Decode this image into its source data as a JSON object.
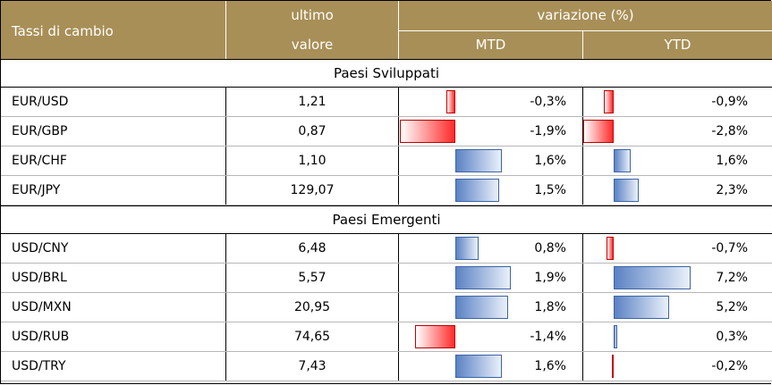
{
  "header": {
    "col1": "Tassi di cambio",
    "col2_line1": "ultimo",
    "col2_line2": "valore",
    "group": "variazione (%)",
    "mtd": "MTD",
    "ytd": "YTD"
  },
  "colors": {
    "header_bg": "#a88f57",
    "positive_bar": "#5b82c4",
    "negative_bar": "#ff2a2a"
  },
  "sections": [
    {
      "title": "Paesi Sviluppati",
      "rows": [
        {
          "pair": "EUR/USD",
          "value": "1,21",
          "mtd": -0.3,
          "mtd_label": "-0,3%",
          "ytd": -0.9,
          "ytd_label": "-0,9%"
        },
        {
          "pair": "EUR/GBP",
          "value": "0,87",
          "mtd": -1.9,
          "mtd_label": "-1,9%",
          "ytd": -2.8,
          "ytd_label": "-2,8%"
        },
        {
          "pair": "EUR/CHF",
          "value": "1,10",
          "mtd": 1.6,
          "mtd_label": "1,6%",
          "ytd": 1.6,
          "ytd_label": "1,6%"
        },
        {
          "pair": "EUR/JPY",
          "value": "129,07",
          "mtd": 1.5,
          "mtd_label": "1,5%",
          "ytd": 2.3,
          "ytd_label": "2,3%"
        }
      ]
    },
    {
      "title": "Paesi Emergenti",
      "rows": [
        {
          "pair": "USD/CNY",
          "value": "6,48",
          "mtd": 0.8,
          "mtd_label": "0,8%",
          "ytd": -0.7,
          "ytd_label": "-0,7%"
        },
        {
          "pair": "USD/BRL",
          "value": "5,57",
          "mtd": 1.9,
          "mtd_label": "1,9%",
          "ytd": 7.2,
          "ytd_label": "7,2%"
        },
        {
          "pair": "USD/MXN",
          "value": "20,95",
          "mtd": 1.8,
          "mtd_label": "1,8%",
          "ytd": 5.2,
          "ytd_label": "5,2%"
        },
        {
          "pair": "USD/RUB",
          "value": "74,65",
          "mtd": -1.4,
          "mtd_label": "-1,4%",
          "ytd": 0.3,
          "ytd_label": "0,3%"
        },
        {
          "pair": "USD/TRY",
          "value": "7,43",
          "mtd": 1.6,
          "mtd_label": "1,6%",
          "ytd": -0.2,
          "ytd_label": "-0,2%"
        }
      ]
    }
  ]
}
